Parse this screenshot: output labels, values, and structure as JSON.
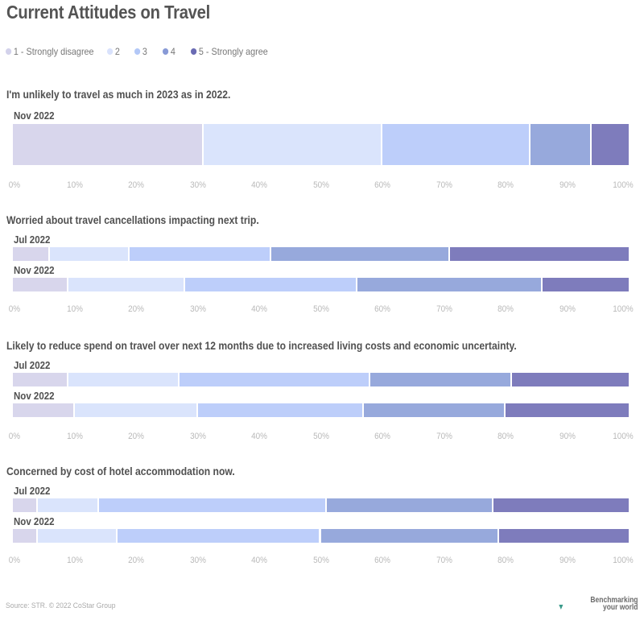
{
  "chart_data": {
    "type": "bar",
    "orientation": "horizontal",
    "stacked": "100%",
    "title": "Current Attitudes on Travel",
    "legend_position": "top-left",
    "legend": [
      {
        "label": "1 - Strongly disagree",
        "color": "#d3d2eb"
      },
      {
        "label": "2",
        "color": "#d9e2fc"
      },
      {
        "label": "3",
        "color": "#b3c8f7"
      },
      {
        "label": "4",
        "color": "#889ad6"
      },
      {
        "label": "5 - Strongly agree",
        "color": "#6a6bb3"
      }
    ],
    "segment_colors": [
      "#d8d6ec",
      "#dae4fc",
      "#bdcefa",
      "#97a9dc",
      "#7e7cbc"
    ],
    "xlim": [
      0,
      100
    ],
    "xticks": [
      "0%",
      "10%",
      "20%",
      "30%",
      "40%",
      "50%",
      "60%",
      "70%",
      "80%",
      "90%",
      "100%"
    ],
    "grid": false,
    "panels": [
      {
        "question": "I'm unlikely to travel as much in 2023 as in 2022.",
        "rows": [
          {
            "label": "Nov 2022",
            "values": [
              31,
              29,
              24,
              10,
              6
            ]
          }
        ]
      },
      {
        "question": "Worried about travel cancellations impacting next trip.",
        "rows": [
          {
            "label": "Jul 2022",
            "values": [
              6,
              13,
              23,
              29,
              29
            ]
          },
          {
            "label": "Nov 2022",
            "values": [
              9,
              19,
              28,
              30,
              14
            ]
          }
        ]
      },
      {
        "question": "Likely to reduce spend on travel over next 12 months due to increased living costs and economic uncertainty.",
        "rows": [
          {
            "label": "Jul 2022",
            "values": [
              9,
              18,
              31,
              23,
              19
            ]
          },
          {
            "label": "Nov 2022",
            "values": [
              10,
              20,
              27,
              23,
              20
            ]
          }
        ]
      },
      {
        "question": "Concerned by cost of hotel accommodation now.",
        "rows": [
          {
            "label": "Jul 2022",
            "values": [
              4,
              10,
              37,
              27,
              22
            ]
          },
          {
            "label": "Nov 2022",
            "values": [
              4,
              13,
              33,
              29,
              21
            ]
          }
        ]
      }
    ]
  },
  "footer": {
    "source": "Source: STR. © 2022 CoStar Group",
    "brand_line1": "Benchmarking",
    "brand_line2": "your world"
  }
}
